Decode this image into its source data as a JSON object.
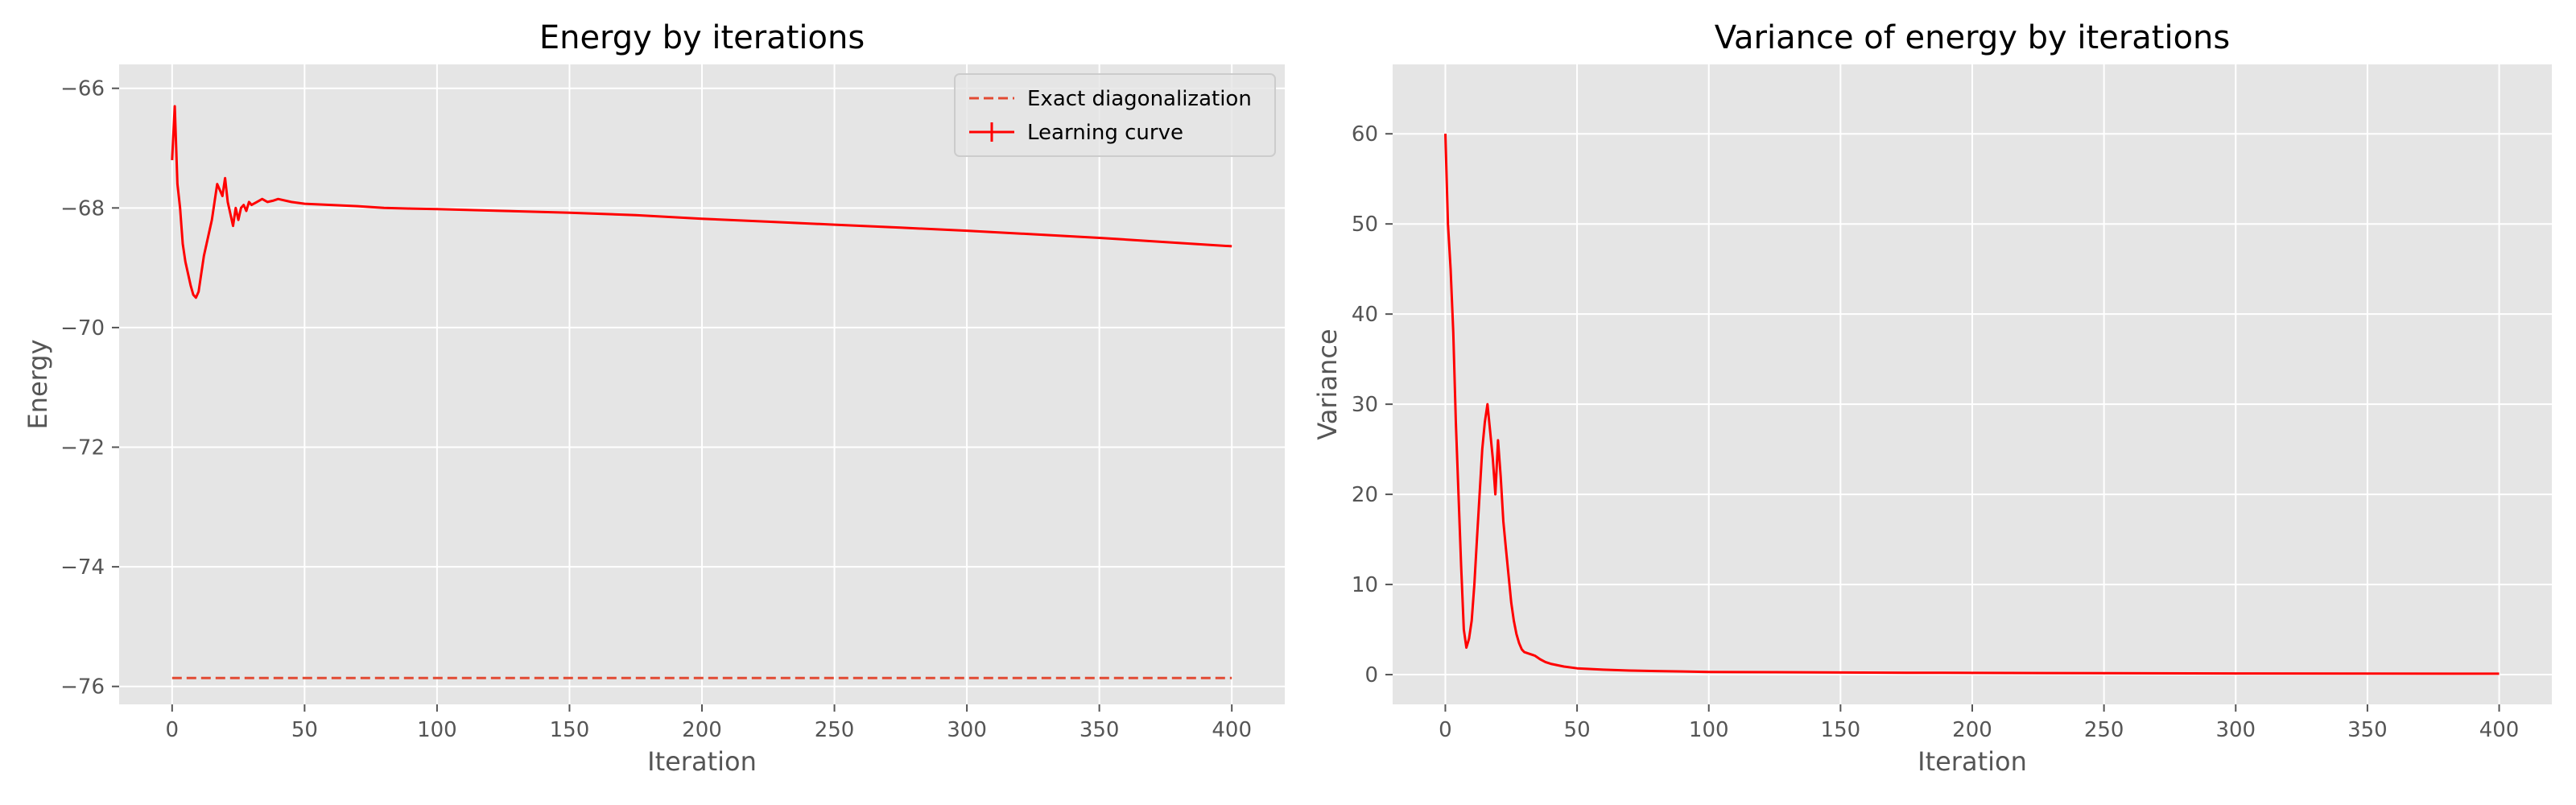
{
  "chart_data": [
    {
      "type": "line",
      "title": "Energy by iterations",
      "xlabel": "Iteration",
      "ylabel": "Energy",
      "xlim": [
        -20,
        420
      ],
      "ylim": [
        -76.3,
        -65.6
      ],
      "xticks": [
        0,
        50,
        100,
        150,
        200,
        250,
        300,
        350,
        400
      ],
      "yticks": [
        -76,
        -74,
        -72,
        -70,
        -68,
        -66
      ],
      "ytick_labels": [
        "−76",
        "−74",
        "−72",
        "−70",
        "−68",
        "−66"
      ],
      "grid": true,
      "legend": "top-right",
      "series": [
        {
          "name": "Exact diagonalization",
          "style": "dashed",
          "color": "#e24a33",
          "x": [
            0,
            400
          ],
          "y": [
            -75.86,
            -75.86
          ]
        },
        {
          "name": "Learning curve",
          "style": "solid-with-errorbars",
          "color": "#ff0000",
          "x": [
            0,
            1,
            2,
            3,
            4,
            5,
            6,
            7,
            8,
            9,
            10,
            11,
            12,
            13,
            14,
            15,
            16,
            17,
            18,
            19,
            20,
            21,
            22,
            23,
            24,
            25,
            26,
            27,
            28,
            29,
            30,
            32,
            34,
            36,
            38,
            40,
            45,
            50,
            60,
            70,
            80,
            90,
            100,
            125,
            150,
            175,
            200,
            225,
            250,
            275,
            300,
            325,
            350,
            375,
            400
          ],
          "y": [
            -67.2,
            -66.3,
            -67.6,
            -68.0,
            -68.6,
            -68.9,
            -69.1,
            -69.3,
            -69.45,
            -69.5,
            -69.4,
            -69.1,
            -68.8,
            -68.6,
            -68.4,
            -68.2,
            -67.9,
            -67.6,
            -67.7,
            -67.8,
            -67.5,
            -67.9,
            -68.1,
            -68.3,
            -68.0,
            -68.2,
            -68.0,
            -67.95,
            -68.05,
            -67.9,
            -67.95,
            -67.9,
            -67.85,
            -67.9,
            -67.88,
            -67.85,
            -67.9,
            -67.93,
            -67.95,
            -67.97,
            -68.0,
            -68.01,
            -68.02,
            -68.05,
            -68.08,
            -68.12,
            -68.18,
            -68.23,
            -68.28,
            -68.33,
            -68.38,
            -68.44,
            -68.5,
            -68.57,
            -68.64
          ]
        }
      ]
    },
    {
      "type": "line",
      "title": "Variance of energy by iterations",
      "xlabel": "Iteration",
      "ylabel": "Variance",
      "xlim": [
        -20,
        420
      ],
      "ylim": [
        -3.3,
        67.7
      ],
      "xticks": [
        0,
        50,
        100,
        150,
        200,
        250,
        300,
        350,
        400
      ],
      "yticks": [
        0,
        10,
        20,
        30,
        40,
        50,
        60
      ],
      "grid": true,
      "series": [
        {
          "color": "#ff0000",
          "x": [
            0,
            1,
            2,
            3,
            4,
            5,
            6,
            7,
            8,
            9,
            10,
            11,
            12,
            13,
            14,
            15,
            16,
            17,
            18,
            19,
            20,
            21,
            22,
            23,
            24,
            25,
            26,
            27,
            28,
            29,
            30,
            32,
            34,
            36,
            38,
            40,
            45,
            50,
            60,
            70,
            80,
            90,
            100,
            125,
            150,
            175,
            200,
            250,
            300,
            350,
            400
          ],
          "y": [
            60,
            50,
            45,
            38,
            28,
            20,
            12,
            5,
            3,
            4,
            6,
            10,
            15,
            20,
            25,
            28,
            30,
            27,
            24,
            20,
            26,
            22,
            17,
            14,
            11,
            8,
            6,
            4.5,
            3.5,
            2.8,
            2.5,
            2.3,
            2.1,
            1.7,
            1.4,
            1.2,
            0.9,
            0.7,
            0.55,
            0.45,
            0.4,
            0.35,
            0.3,
            0.27,
            0.24,
            0.21,
            0.19,
            0.16,
            0.13,
            0.11,
            0.1
          ]
        }
      ]
    }
  ]
}
